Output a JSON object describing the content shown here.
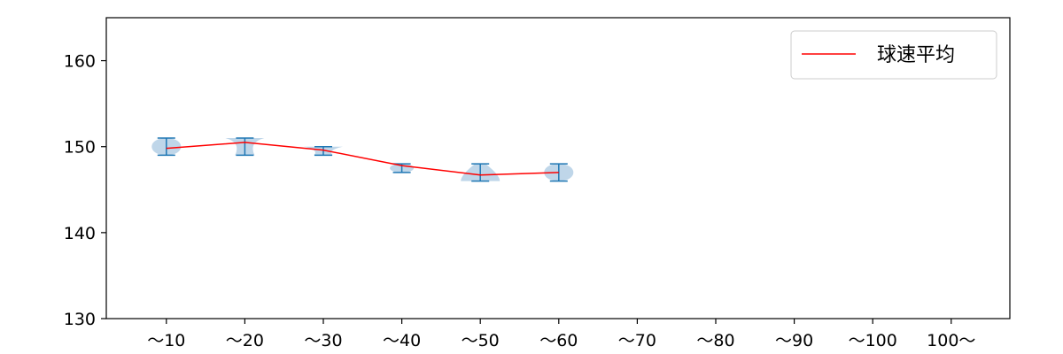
{
  "chart_data": {
    "type": "violin",
    "categories": [
      "～10",
      "～20",
      "～30",
      "～40",
      "～50",
      "～60",
      "～70",
      "～80",
      "～90",
      "～100",
      "100～"
    ],
    "ylim": [
      130,
      165
    ],
    "yticks": [
      130,
      140,
      150,
      160
    ],
    "grid": false,
    "legend": {
      "placement": "top-right",
      "entries": [
        "球速平均"
      ]
    },
    "series": [
      {
        "name": "球速平均",
        "mean": [
          149.8,
          150.5,
          149.6,
          147.8,
          146.7,
          147.0,
          null,
          null,
          null,
          null,
          null
        ],
        "min": [
          149.0,
          149.0,
          149.0,
          147.0,
          146.0,
          146.0,
          null,
          null,
          null,
          null,
          null
        ],
        "max": [
          151.0,
          151.0,
          150.0,
          148.0,
          148.0,
          148.0,
          null,
          null,
          null,
          null,
          null
        ]
      }
    ],
    "colors": {
      "line": "#ff0000",
      "violin": "#bcd4e8",
      "whisker": "#1f77b4",
      "axis": "#000000"
    }
  }
}
